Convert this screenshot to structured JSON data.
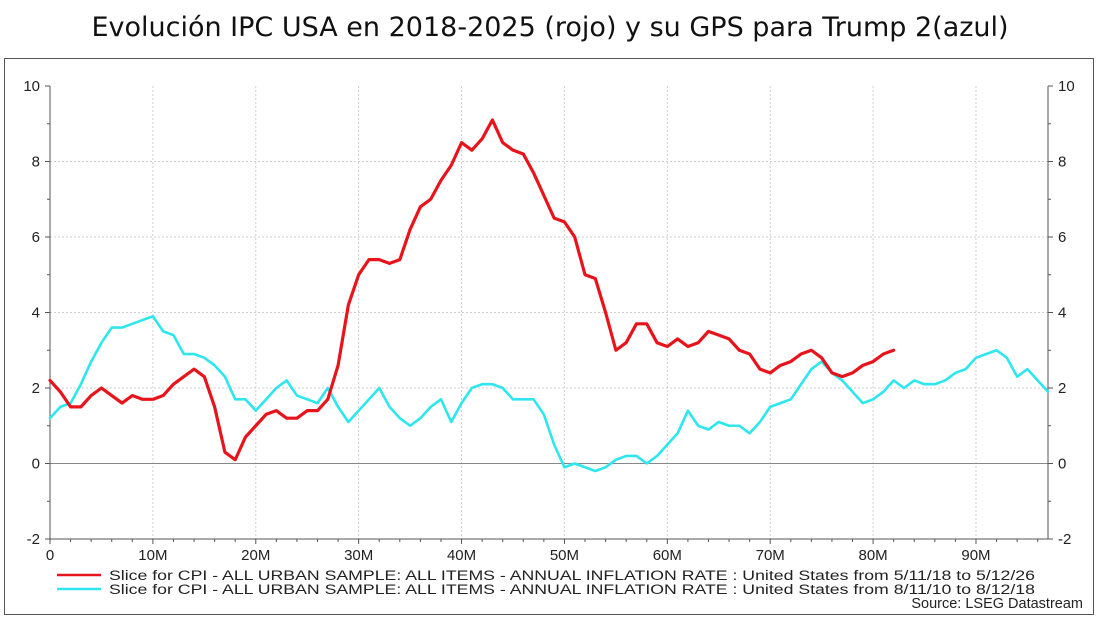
{
  "title": "Evolución IPC USA en 2018-2025 (rojo) y su GPS para Trump 2(azul)",
  "source": "Source: LSEG Datastream",
  "colors": {
    "red_series": "#e8141b",
    "cyan_series": "#2ee6ee",
    "grid": "#cfcfcf",
    "zero_line": "#888888",
    "axis": "#555555"
  },
  "chart_data": {
    "type": "line",
    "title": "Evolución IPC USA en 2018-2025 (rojo) y su GPS para Trump 2(azul)",
    "xlabel": "",
    "ylabel": "",
    "xlim": [
      0,
      97
    ],
    "ylim": [
      -2,
      10
    ],
    "x_ticks": [
      0,
      10,
      20,
      30,
      40,
      50,
      60,
      70,
      80,
      90
    ],
    "x_tick_labels": [
      "0",
      "10M",
      "20M",
      "30M",
      "40M",
      "50M",
      "60M",
      "70M",
      "80M",
      "90M"
    ],
    "y_ticks": [
      -2,
      0,
      2,
      4,
      6,
      8,
      10
    ],
    "y_tick_labels": [
      "-2",
      "0",
      "2",
      "4",
      "6",
      "8",
      "10"
    ],
    "grid": true,
    "series": [
      {
        "name": "Slice for CPI - ALL URBAN SAMPLE: ALL ITEMS - ANNUAL INFLATION RATE : United States from 5/11/18 to 5/12/26",
        "color": "#e8141b",
        "x": [
          0,
          1,
          2,
          3,
          4,
          5,
          6,
          7,
          8,
          9,
          10,
          11,
          12,
          13,
          14,
          15,
          16,
          17,
          18,
          19,
          20,
          21,
          22,
          23,
          24,
          25,
          26,
          27,
          28,
          29,
          30,
          31,
          32,
          33,
          34,
          35,
          36,
          37,
          38,
          39,
          40,
          41,
          42,
          43,
          44,
          45,
          46,
          47,
          48,
          49,
          50,
          51,
          52,
          53,
          54,
          55,
          56,
          57,
          58,
          59,
          60,
          61,
          62,
          63,
          64,
          65,
          66,
          67,
          68,
          69,
          70,
          71,
          72,
          73,
          74,
          75,
          76,
          77,
          78,
          79,
          80,
          81,
          82
        ],
        "values": [
          2.2,
          1.9,
          1.5,
          1.5,
          1.8,
          2.0,
          1.8,
          1.6,
          1.8,
          1.7,
          1.7,
          1.8,
          2.1,
          2.3,
          2.5,
          2.3,
          1.5,
          0.3,
          0.1,
          0.7,
          1.0,
          1.3,
          1.4,
          1.2,
          1.2,
          1.4,
          1.4,
          1.7,
          2.6,
          4.2,
          5.0,
          5.4,
          5.4,
          5.3,
          5.4,
          6.2,
          6.8,
          7.0,
          7.5,
          7.9,
          8.5,
          8.3,
          8.6,
          9.1,
          8.5,
          8.3,
          8.2,
          7.7,
          7.1,
          6.5,
          6.4,
          6.0,
          5.0,
          4.9,
          4.0,
          3.0,
          3.2,
          3.7,
          3.7,
          3.2,
          3.1,
          3.3,
          3.1,
          3.2,
          3.5,
          3.4,
          3.3,
          3.0,
          2.9,
          2.5,
          2.4,
          2.6,
          2.7,
          2.9,
          3.0,
          2.8,
          2.4,
          2.3,
          2.4,
          2.6,
          2.7,
          2.9,
          3.0
        ]
      },
      {
        "name": "Slice for CPI - ALL URBAN SAMPLE: ALL ITEMS - ANNUAL INFLATION RATE : United States from 8/11/10 to 8/12/18",
        "color": "#2ee6ee",
        "x": [
          0,
          1,
          2,
          3,
          4,
          5,
          6,
          7,
          8,
          9,
          10,
          11,
          12,
          13,
          14,
          15,
          16,
          17,
          18,
          19,
          20,
          21,
          22,
          23,
          24,
          25,
          26,
          27,
          28,
          29,
          30,
          31,
          32,
          33,
          34,
          35,
          36,
          37,
          38,
          39,
          40,
          41,
          42,
          43,
          44,
          45,
          46,
          47,
          48,
          49,
          50,
          51,
          52,
          53,
          54,
          55,
          56,
          57,
          58,
          59,
          60,
          61,
          62,
          63,
          64,
          65,
          66,
          67,
          68,
          69,
          70,
          71,
          72,
          73,
          74,
          75,
          76,
          77,
          78,
          79,
          80,
          81,
          82,
          83,
          84,
          85,
          86,
          87,
          88,
          89,
          90,
          91,
          92,
          93,
          94,
          95,
          96,
          97
        ],
        "values": [
          1.2,
          1.5,
          1.6,
          2.1,
          2.7,
          3.2,
          3.6,
          3.6,
          3.7,
          3.8,
          3.9,
          3.5,
          3.4,
          2.9,
          2.9,
          2.8,
          2.6,
          2.3,
          1.7,
          1.7,
          1.4,
          1.7,
          2.0,
          2.2,
          1.8,
          1.7,
          1.6,
          2.0,
          1.5,
          1.1,
          1.4,
          1.7,
          2.0,
          1.5,
          1.2,
          1.0,
          1.2,
          1.5,
          1.7,
          1.1,
          1.6,
          2.0,
          2.1,
          2.1,
          2.0,
          1.7,
          1.7,
          1.7,
          1.3,
          0.5,
          -0.1,
          0.0,
          -0.1,
          -0.2,
          -0.1,
          0.1,
          0.2,
          0.2,
          0.0,
          0.2,
          0.5,
          0.8,
          1.4,
          1.0,
          0.9,
          1.1,
          1.0,
          1.0,
          0.8,
          1.1,
          1.5,
          1.6,
          1.7,
          2.1,
          2.5,
          2.7,
          2.4,
          2.2,
          1.9,
          1.6,
          1.7,
          1.9,
          2.2,
          2.0,
          2.2,
          2.1,
          2.1,
          2.2,
          2.4,
          2.5,
          2.8,
          2.9,
          3.0,
          2.8,
          2.3,
          2.5,
          2.2,
          1.9
        ]
      }
    ],
    "legend_position": "bottom-left"
  }
}
